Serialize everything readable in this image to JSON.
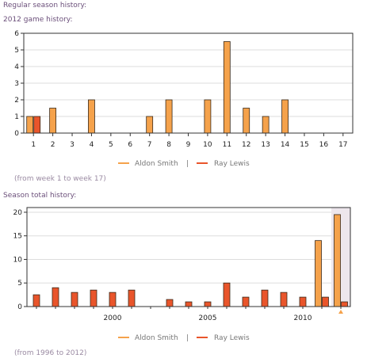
{
  "page": {
    "regular_title": "Regular season history:",
    "game_title": "2012 game history:",
    "game_range_note": "(from week 1 to week 17)",
    "season_title": "Season total history:",
    "season_range_note": "(from 1996 to 2012)",
    "legend_separator": "|"
  },
  "colors": {
    "aldon": "#f5a24b",
    "ray": "#e9552b",
    "highlight": "#ede6ec",
    "grid": "#dddddd"
  },
  "chart_data": [
    {
      "type": "bar",
      "title": "2012 game history:",
      "categories": [
        "1",
        "2",
        "3",
        "4",
        "5",
        "6",
        "7",
        "8",
        "9",
        "10",
        "11",
        "12",
        "13",
        "14",
        "15",
        "16",
        "17"
      ],
      "series": [
        {
          "name": "Aldon Smith",
          "values": [
            1,
            1.5,
            0,
            2,
            0,
            0,
            1,
            2,
            0,
            2,
            5.5,
            1.5,
            1,
            2,
            0,
            0,
            0
          ]
        },
        {
          "name": "Ray Lewis",
          "values": [
            1,
            0,
            0,
            0,
            0,
            0,
            0,
            0,
            0,
            0,
            0,
            0,
            0,
            0,
            0,
            0,
            0
          ]
        }
      ],
      "ylim": [
        0,
        6
      ],
      "yticks": [
        "0",
        "1",
        "2",
        "3",
        "4",
        "5",
        "6"
      ],
      "grid": true,
      "legend": "bottom-center"
    },
    {
      "type": "bar",
      "title": "Season total history:",
      "categories": [
        "1996",
        "1997",
        "1998",
        "1999",
        "2000",
        "2001",
        "2002",
        "2003",
        "2004",
        "2005",
        "2006",
        "2007",
        "2008",
        "2009",
        "2010",
        "2011",
        "2012"
      ],
      "xticks": [
        "2000",
        "2005",
        "2010"
      ],
      "series": [
        {
          "name": "Aldon Smith",
          "values": [
            0,
            0,
            0,
            0,
            0,
            0,
            0,
            0,
            0,
            0,
            0,
            0,
            0,
            0,
            0,
            14,
            19.5
          ]
        },
        {
          "name": "Ray Lewis",
          "values": [
            2.5,
            4,
            3,
            3.5,
            3,
            3.5,
            0,
            1.5,
            1,
            1,
            5,
            2,
            3.5,
            3,
            2,
            2,
            1
          ]
        }
      ],
      "ylim": [
        0,
        21
      ],
      "yticks": [
        "0",
        "5",
        "10",
        "15",
        "20"
      ],
      "highlighted_category": "2012",
      "grid": true,
      "legend": "bottom-center"
    }
  ]
}
